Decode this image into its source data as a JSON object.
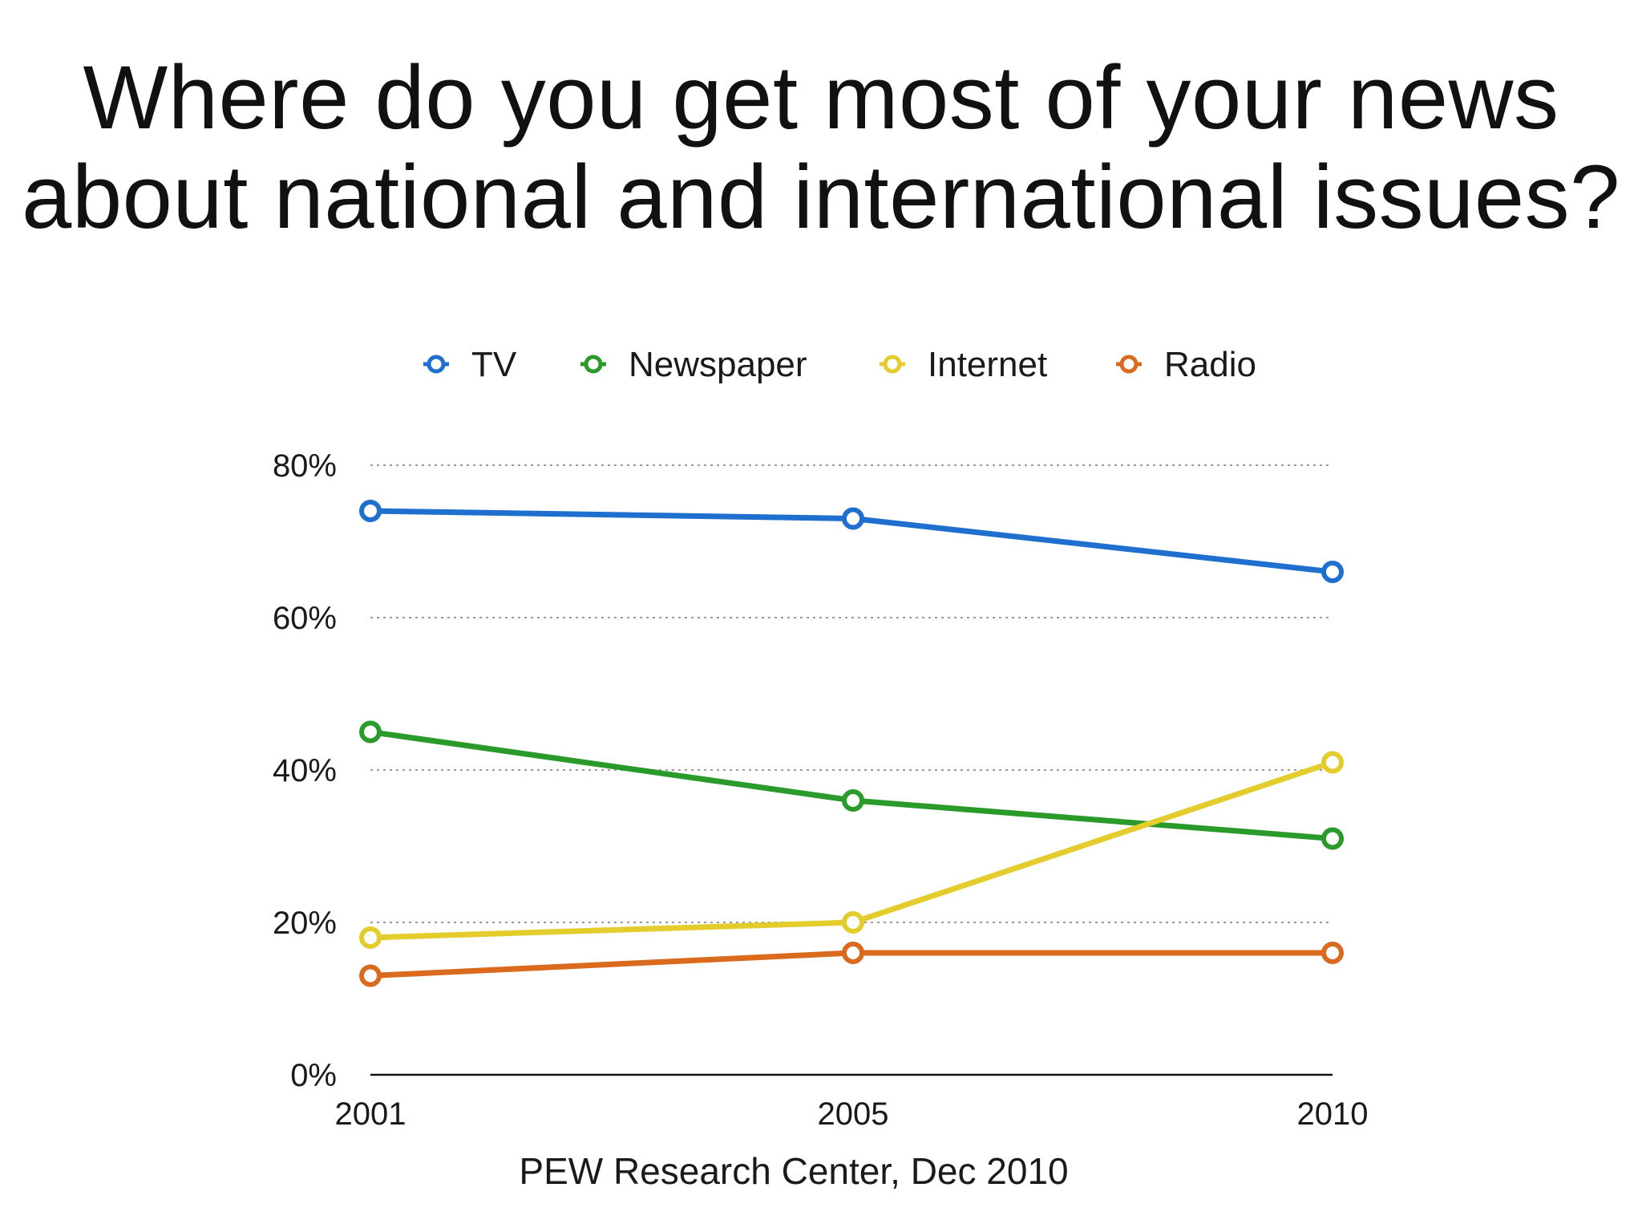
{
  "chart_data": {
    "type": "line",
    "title": "Where do you get most of your news about national and international issues?",
    "title_lines": [
      "Where do you get most of your news",
      "about national and international issues?"
    ],
    "x": [
      "2001",
      "2005",
      "2010"
    ],
    "ylim": [
      0,
      80
    ],
    "y_ticks": [
      "0%",
      "20%",
      "40%",
      "60%",
      "80%"
    ],
    "y_tick_values": [
      0,
      20,
      40,
      60,
      80
    ],
    "grid": "horizontal dotted",
    "legend_placement": "top-center",
    "series": [
      {
        "name": "TV",
        "color": "#1f6fce",
        "values": [
          74,
          73,
          66
        ]
      },
      {
        "name": "Newspaper",
        "color": "#2a9a2a",
        "values": [
          45,
          36,
          31
        ]
      },
      {
        "name": "Internet",
        "color": "#e3cc2c",
        "values": [
          18,
          20,
          41
        ]
      },
      {
        "name": "Radio",
        "color": "#d96a1e",
        "values": [
          13,
          16,
          16
        ]
      }
    ],
    "source": "PEW Research Center, Dec 2010"
  }
}
